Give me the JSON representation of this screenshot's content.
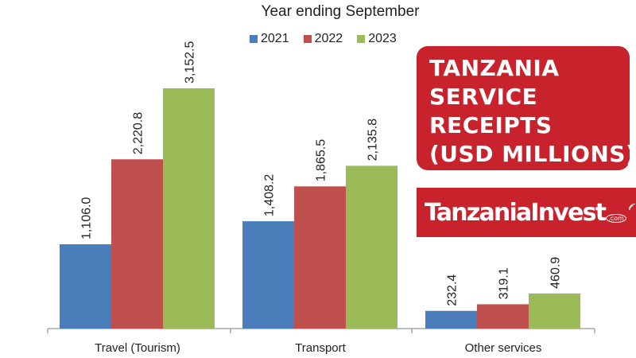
{
  "header": {
    "subtitle": "Year ending September",
    "title_lines": [
      "TANZANIA",
      "SERVICE",
      "RECEIPTS",
      "(USD MILLIONS)"
    ],
    "brand": "TanzaniaInvest",
    "brand_suffix": ".com"
  },
  "colors": {
    "2021": "#4a7ebb",
    "2022": "#c0504d",
    "2023": "#9bbb59",
    "title_bg": "#c8232c"
  },
  "chart_data": {
    "type": "bar",
    "title": "Year ending September",
    "categories": [
      "Travel (Tourism)",
      "Transport",
      "Other services"
    ],
    "series": [
      {
        "name": "2021",
        "values": [
          1106.0,
          1408.2,
          232.4
        ],
        "labels": [
          "1,106.0",
          "1,408.2",
          "232.4"
        ]
      },
      {
        "name": "2022",
        "values": [
          2220.8,
          1865.5,
          319.1
        ],
        "labels": [
          "2,220.8",
          "1,865.5",
          "319.1"
        ]
      },
      {
        "name": "2023",
        "values": [
          3152.5,
          2135.8,
          460.9
        ],
        "labels": [
          "3,152.5",
          "2,135.8",
          "460.9"
        ]
      }
    ],
    "xlabel": "",
    "ylabel": "",
    "grid": false,
    "legend": "top-center"
  }
}
